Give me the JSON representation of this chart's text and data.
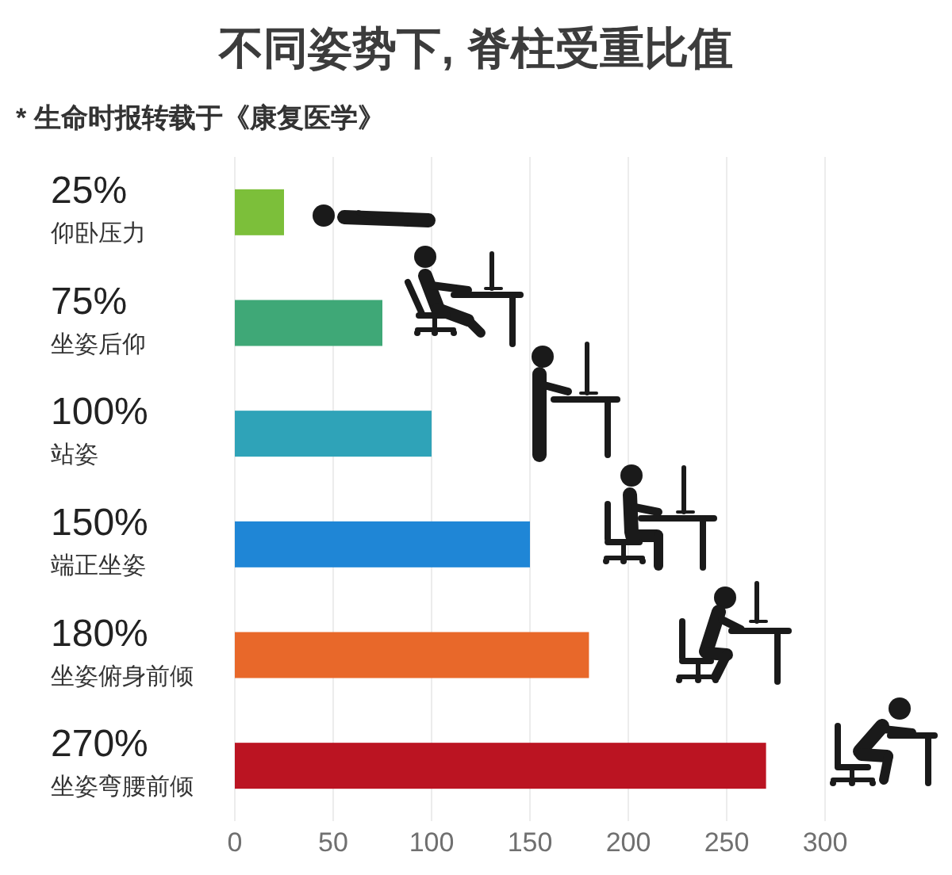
{
  "chart_data": {
    "type": "bar",
    "orientation": "horizontal",
    "title": "不同姿势下, 脊柱受重比值",
    "subtitle": "* 生命时报转载于《康复医学》",
    "categories": [
      "仰卧压力",
      "坐姿后仰",
      "站姿",
      "端正坐姿",
      "坐姿俯身前倾",
      "坐姿弯腰前倾"
    ],
    "values": [
      25,
      75,
      100,
      150,
      180,
      270
    ],
    "value_labels": [
      "25%",
      "75%",
      "100%",
      "150%",
      "180%",
      "270%"
    ],
    "colors": [
      "#7cbf3a",
      "#3fa877",
      "#2fa3b8",
      "#1f86d6",
      "#e8682a",
      "#bb1422"
    ],
    "xlim": [
      0,
      300
    ],
    "xticks": [
      0,
      50,
      100,
      150,
      200,
      250,
      300
    ],
    "grid": "x"
  }
}
